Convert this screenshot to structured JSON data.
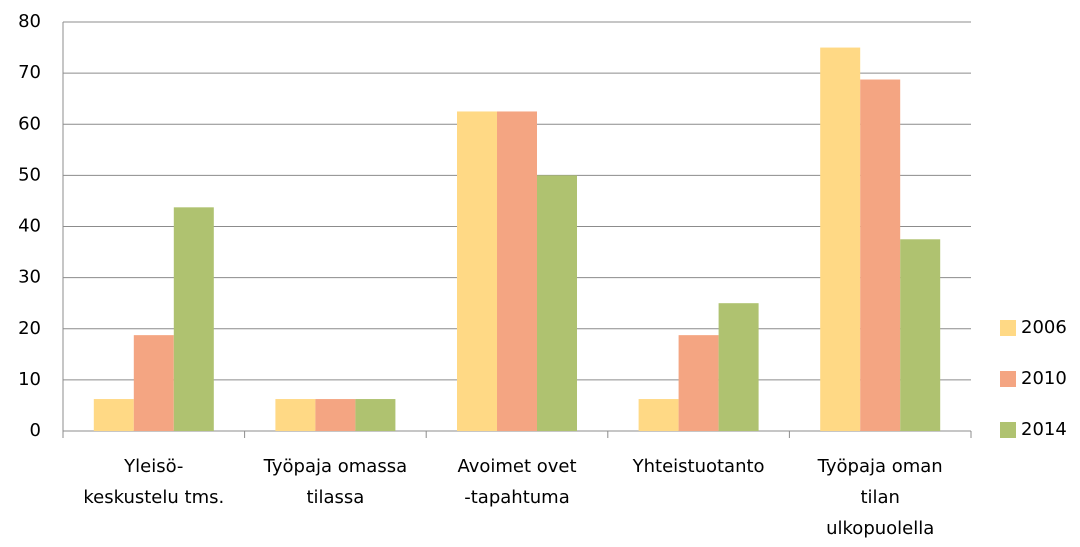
{
  "chart_data": {
    "type": "bar",
    "categories": [
      [
        "Yleisö-",
        "keskustelu tms."
      ],
      [
        "Työpaja omassa",
        "tilassa"
      ],
      [
        "Avoimet ovet",
        "-tapahtuma"
      ],
      [
        "Yhteistuotanto"
      ],
      [
        "Työpaja oman",
        "tilan",
        "ulkopuolella"
      ]
    ],
    "series": [
      {
        "name": "2006",
        "color": "#FFD985",
        "values": [
          6.25,
          6.25,
          62.5,
          6.25,
          75
        ]
      },
      {
        "name": "2010",
        "color": "#F4A582",
        "values": [
          18.75,
          6.25,
          62.5,
          18.75,
          68.75
        ]
      },
      {
        "name": "2014",
        "color": "#AFC270",
        "values": [
          43.75,
          6.25,
          50,
          25,
          37.5
        ]
      }
    ],
    "ylim": [
      0,
      80
    ],
    "yticks": [
      0,
      10,
      20,
      30,
      40,
      50,
      60,
      70,
      80
    ],
    "grid": true,
    "legend": "right"
  }
}
